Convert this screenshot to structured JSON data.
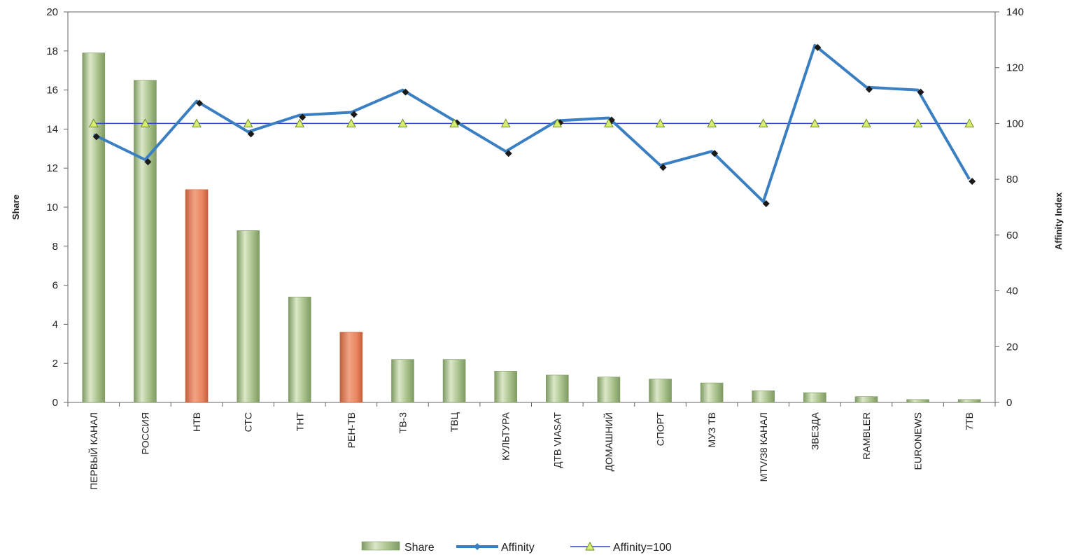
{
  "chart_data": {
    "type": "bar",
    "categories": [
      "ПЕРВЫЙ КАНАЛ",
      "РОССИЯ",
      "НТВ",
      "СТС",
      "ТНТ",
      "РЕН-ТВ",
      "ТВ-3",
      "ТВЦ",
      "КУЛЬТУРА",
      "ДТВ VIASAT",
      "ДОМАШНИЙ",
      "СПОРТ",
      "МУЗ ТВ",
      "МТV/38 КАНАЛ",
      "ЗВЕЗДА",
      "RAMBLER",
      "EURONEWS",
      "7ТВ"
    ],
    "series": [
      {
        "name": "Share",
        "axis": "left",
        "type": "bar",
        "values": [
          17.9,
          16.5,
          10.9,
          8.8,
          5.4,
          3.6,
          2.2,
          2.2,
          1.6,
          1.4,
          1.3,
          1.2,
          1.0,
          0.6,
          0.5,
          0.3,
          0.15,
          0.15
        ]
      },
      {
        "name": "Affinity",
        "axis": "right",
        "type": "line",
        "values": [
          96,
          87,
          108,
          97,
          103,
          104,
          112,
          101,
          90,
          101,
          102,
          85,
          90,
          72,
          128,
          113,
          112,
          80
        ]
      },
      {
        "name": "Affinity=100",
        "axis": "right",
        "type": "line",
        "values": [
          100,
          100,
          100,
          100,
          100,
          100,
          100,
          100,
          100,
          100,
          100,
          100,
          100,
          100,
          100,
          100,
          100,
          100
        ]
      }
    ],
    "highlighted_categories": [
      "НТВ",
      "РЕН-ТВ"
    ],
    "ylabel": "Share",
    "y2label": "Affinity Index",
    "ylim": [
      0,
      20
    ],
    "y2lim": [
      0,
      140
    ],
    "yticks": [
      "0",
      "2",
      "4",
      "6",
      "8",
      "10",
      "12",
      "14",
      "16",
      "18",
      "20"
    ],
    "y2ticks": [
      "0",
      "20",
      "40",
      "60",
      "80",
      "100",
      "120",
      "140"
    ],
    "legend_position": "bottom",
    "grid": false
  },
  "colors": {
    "bar": "#a8c08a",
    "bar_light": "#dbe8c8",
    "bar_dark": "#7f9a63",
    "bar_highlight": "#e98560",
    "bar_highlight_dark": "#c2603c",
    "affinity_line": "#3a7fc1",
    "affinity_marker": "#1a1a1a",
    "baseline_line": "#3344cc",
    "baseline_marker": "#d8ee70"
  }
}
